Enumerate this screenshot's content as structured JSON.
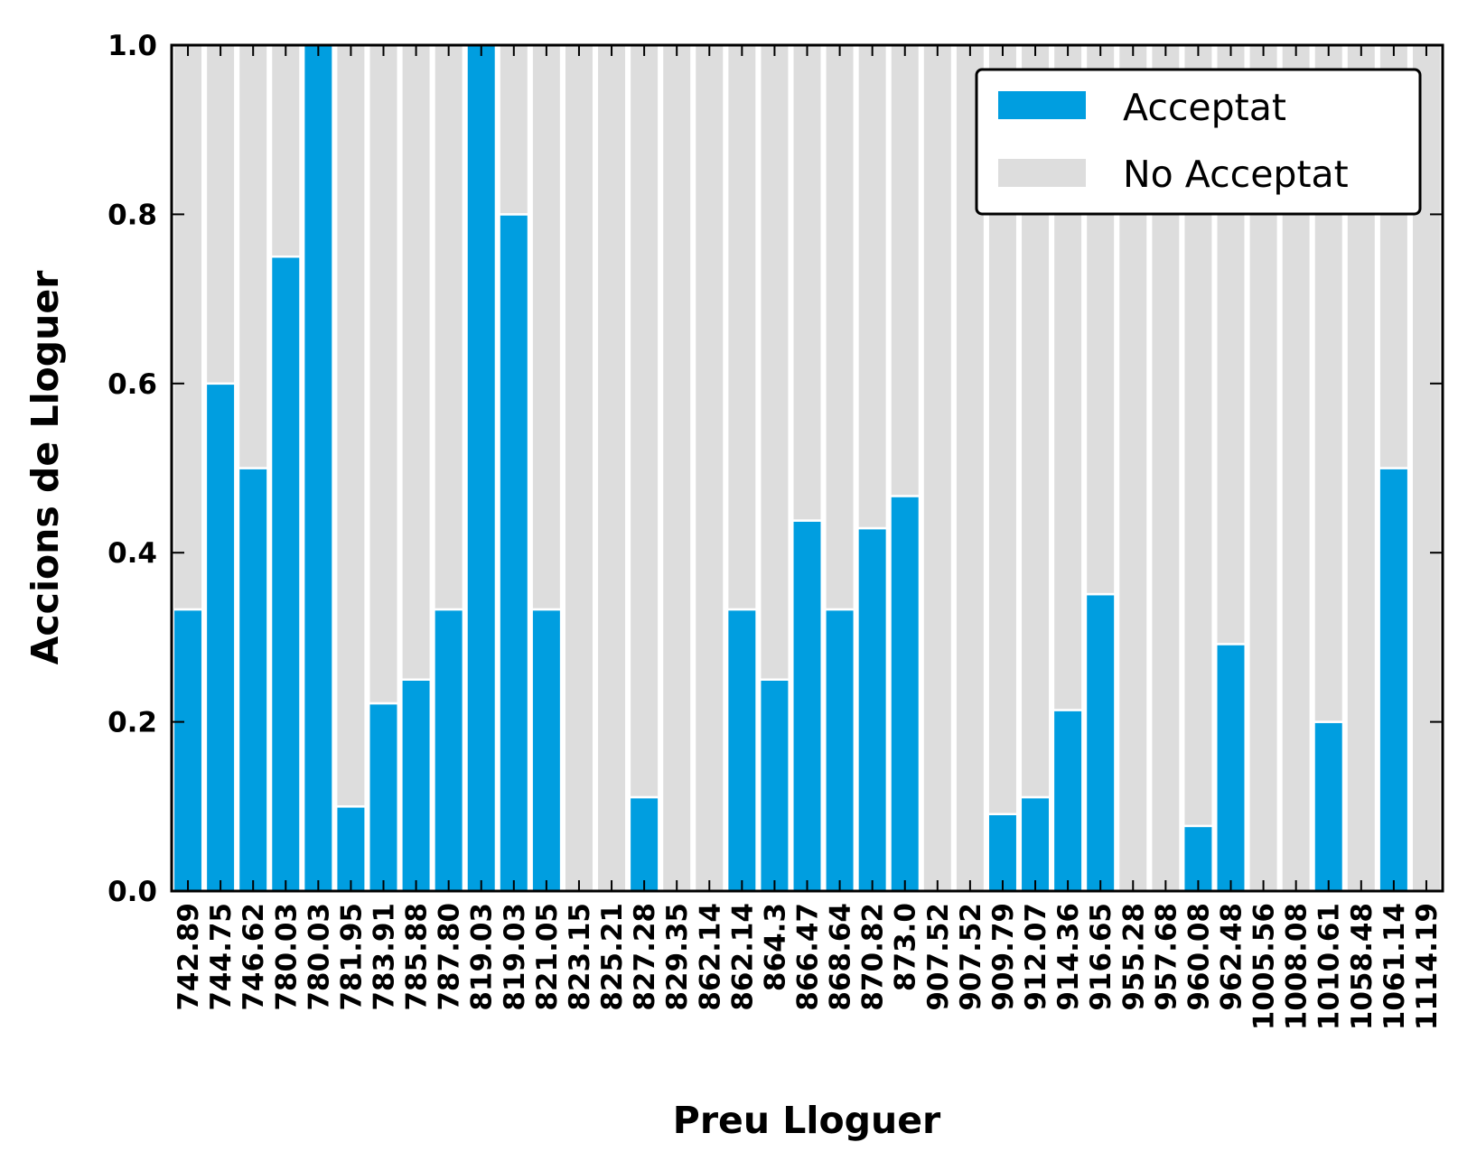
{
  "chart_data": {
    "type": "bar",
    "stacked": true,
    "xlabel": "Preu Lloguer",
    "ylabel": "Accions de Lloguer",
    "ylim": [
      0,
      1
    ],
    "yticks": [
      "0.0",
      "0.2",
      "0.4",
      "0.6",
      "0.8",
      "1.0"
    ],
    "grid": false,
    "legend_position": "top-right",
    "categories": [
      "742.89",
      "744.75",
      "746.62",
      "780.03",
      "780.03",
      "781.95",
      "783.91",
      "785.88",
      "787.80",
      "819.03",
      "819.03",
      "821.05",
      "823.15",
      "825.21",
      "827.28",
      "829.35",
      "862.14",
      "862.14",
      "864.3",
      "866.47",
      "868.64",
      "870.82",
      "873.0",
      "907.52",
      "907.52",
      "909.79",
      "912.07",
      "914.36",
      "916.65",
      "955.28",
      "957.68",
      "960.08",
      "962.48",
      "1005.56",
      "1008.08",
      "1010.61",
      "1058.48",
      "1061.14",
      "1114.19"
    ],
    "series": [
      {
        "name": "Acceptat",
        "color": "#009ee0",
        "values": [
          0.333,
          0.6,
          0.5,
          0.75,
          1.0,
          0.1,
          0.222,
          0.25,
          0.333,
          1.0,
          0.8,
          0.333,
          0,
          0,
          0.111,
          0,
          0,
          0.333,
          0.25,
          0.438,
          0.333,
          0.429,
          0.467,
          0,
          0,
          0.091,
          0.111,
          0.214,
          0.351,
          0,
          0,
          0.077,
          0.292,
          0,
          0,
          0.2,
          0,
          0.5,
          0
        ]
      },
      {
        "name": "No Acceptat",
        "color": "#dddddd",
        "values": [
          0.667,
          0.4,
          0.5,
          0.25,
          0.0,
          0.9,
          0.778,
          0.75,
          0.667,
          0.0,
          0.2,
          0.667,
          1,
          1,
          0.889,
          1,
          1,
          0.667,
          0.75,
          0.562,
          0.667,
          0.571,
          0.533,
          1,
          1,
          0.909,
          0.889,
          0.786,
          0.649,
          1,
          1,
          0.923,
          0.708,
          1,
          1,
          0.8,
          1,
          0.5,
          1
        ]
      }
    ]
  }
}
